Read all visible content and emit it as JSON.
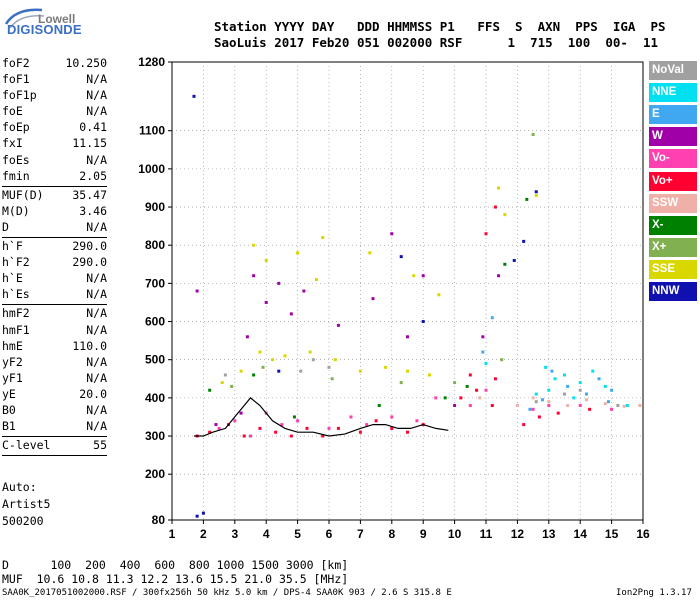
{
  "logo": {
    "line1": "Lowell",
    "line2": "DIGISONDE"
  },
  "header": {
    "labels": "Station YYYY DAY   DDD HHMMSS P1   FFS  S  AXN  PPS  IGA  PS",
    "values": "SaoLuis 2017 Feb20 051 002000 RSF      1  715  100  00-  11"
  },
  "params": [
    {
      "name": "foF2",
      "value": "10.250"
    },
    {
      "name": "foF1",
      "value": "N/A"
    },
    {
      "name": "foF1p",
      "value": "N/A"
    },
    {
      "name": "foE",
      "value": "N/A"
    },
    {
      "name": "foEp",
      "value": "0.41"
    },
    {
      "name": "fxI",
      "value": "11.15"
    },
    {
      "name": "foEs",
      "value": "N/A"
    },
    {
      "name": "fmin",
      "value": "2.05"
    },
    {
      "sep": true
    },
    {
      "name": "MUF(D)",
      "value": "35.47"
    },
    {
      "name": "M(D)",
      "value": "3.46"
    },
    {
      "name": "D",
      "value": "N/A"
    },
    {
      "sep": true
    },
    {
      "name": "h`F",
      "value": "290.0"
    },
    {
      "name": "h`F2",
      "value": "290.0"
    },
    {
      "name": "h`E",
      "value": "N/A"
    },
    {
      "name": "h`Es",
      "value": "N/A"
    },
    {
      "sep": true
    },
    {
      "name": "hmF2",
      "value": "N/A"
    },
    {
      "name": "hmF1",
      "value": "N/A"
    },
    {
      "name": "hmE",
      "value": "110.0"
    },
    {
      "name": "yF2",
      "value": "N/A"
    },
    {
      "name": "yF1",
      "value": "N/A"
    },
    {
      "name": "yE",
      "value": "20.0"
    },
    {
      "name": "B0",
      "value": "N/A"
    },
    {
      "name": "B1",
      "value": "N/A"
    },
    {
      "sep": true
    },
    {
      "name": "C-level",
      "value": "55"
    },
    {
      "sep": true
    }
  ],
  "autoscaling": {
    "line1": "Auto:",
    "line2": "Artist5",
    "line3": "500200"
  },
  "muf_table": {
    "d_line": "D      100  200  400  600  800 1000 1500 3000 [km]",
    "muf_line": "MUF  10.6 10.8 11.3 12.2 13.6 15.5 21.0 35.5 [MHz]"
  },
  "footer": {
    "file_info": "SAA0K_2017051002000.RSF / 300fx256h 50 kHz 5.0 km / DPS-4 SAA0K 903 / 2.6 S 315.8 E",
    "version": "Ion2Png 1.3.17"
  },
  "legend": [
    {
      "label": "NoVal",
      "color": "#a0a0a0"
    },
    {
      "label": "NNE",
      "color": "#00e0f0"
    },
    {
      "label": "E",
      "color": "#40a8f0"
    },
    {
      "label": "W",
      "color": "#a000a8"
    },
    {
      "label": "Vo-",
      "color": "#ff40b0"
    },
    {
      "label": "Vo+",
      "color": "#ff0030"
    },
    {
      "label": "SSW",
      "color": "#f0b0a8"
    },
    {
      "label": "X-",
      "color": "#008000"
    },
    {
      "label": "X+",
      "color": "#80b050"
    },
    {
      "label": "SSE",
      "color": "#d8d800"
    },
    {
      "label": "NNW",
      "color": "#1010b0"
    }
  ],
  "chart_data": {
    "type": "scatter",
    "xlim": [
      1,
      16
    ],
    "ylim": [
      80,
      1280
    ],
    "x_ticks": [
      1,
      2,
      3,
      4,
      5,
      6,
      7,
      8,
      9,
      10,
      11,
      12,
      13,
      14,
      15,
      16
    ],
    "y_ticks": [
      80,
      200,
      300,
      400,
      500,
      600,
      700,
      800,
      900,
      1000,
      1100,
      1280
    ],
    "xlabel": "",
    "ylabel": "",
    "grid": true,
    "scaled_trace": [
      [
        1.7,
        300
      ],
      [
        2.0,
        300
      ],
      [
        2.3,
        310
      ],
      [
        2.7,
        320
      ],
      [
        3.0,
        350
      ],
      [
        3.3,
        380
      ],
      [
        3.5,
        400
      ],
      [
        3.8,
        380
      ],
      [
        4.2,
        340
      ],
      [
        4.6,
        320
      ],
      [
        5.0,
        310
      ],
      [
        5.5,
        310
      ],
      [
        6.0,
        300
      ],
      [
        6.5,
        305
      ],
      [
        7.0,
        320
      ],
      [
        7.4,
        330
      ],
      [
        7.8,
        330
      ],
      [
        8.2,
        320
      ],
      [
        8.6,
        320
      ],
      [
        9.0,
        330
      ],
      [
        9.4,
        320
      ],
      [
        9.8,
        315
      ]
    ],
    "series": [
      {
        "name": "NoVal",
        "color": "#a0a0a0",
        "points": [
          [
            5.1,
            470
          ],
          [
            5.5,
            500
          ],
          [
            2.7,
            460
          ],
          [
            6.0,
            480
          ],
          [
            14.0,
            420
          ],
          [
            15.2,
            380
          ],
          [
            13.5,
            410
          ],
          [
            12.6,
            390
          ]
        ]
      },
      {
        "name": "NNE",
        "color": "#00e0f0",
        "points": [
          [
            12.6,
            410
          ],
          [
            13.0,
            420
          ],
          [
            13.5,
            460
          ],
          [
            14.0,
            440
          ],
          [
            14.4,
            470
          ],
          [
            13.8,
            400
          ],
          [
            12.9,
            480
          ],
          [
            11.0,
            490
          ],
          [
            14.8,
            430
          ],
          [
            15.5,
            380
          ],
          [
            13.2,
            450
          ]
        ]
      },
      {
        "name": "E",
        "color": "#40a8f0",
        "points": [
          [
            12.8,
            395
          ],
          [
            13.6,
            430
          ],
          [
            14.2,
            410
          ],
          [
            14.6,
            450
          ],
          [
            15.0,
            420
          ],
          [
            12.4,
            370
          ],
          [
            13.1,
            470
          ],
          [
            14.9,
            390
          ],
          [
            10.9,
            520
          ],
          [
            11.2,
            610
          ]
        ]
      },
      {
        "name": "W",
        "color": "#a000a8",
        "points": [
          [
            3.6,
            720
          ],
          [
            4.0,
            650
          ],
          [
            4.4,
            700
          ],
          [
            4.8,
            620
          ],
          [
            5.2,
            680
          ],
          [
            8.5,
            560
          ],
          [
            9.0,
            720
          ],
          [
            8.0,
            830
          ],
          [
            7.4,
            660
          ],
          [
            3.4,
            560
          ],
          [
            6.3,
            590
          ],
          [
            1.8,
            680
          ],
          [
            10.9,
            560
          ],
          [
            11.4,
            720
          ],
          [
            10.0,
            380
          ],
          [
            2.4,
            330
          ],
          [
            3.2,
            360
          ]
        ]
      },
      {
        "name": "Vo-",
        "color": "#ff40b0",
        "points": [
          [
            2.5,
            320
          ],
          [
            3.0,
            340
          ],
          [
            3.5,
            300
          ],
          [
            4.0,
            360
          ],
          [
            4.5,
            330
          ],
          [
            5.0,
            340
          ],
          [
            6.0,
            320
          ],
          [
            6.7,
            350
          ],
          [
            7.2,
            330
          ],
          [
            8.0,
            350
          ],
          [
            8.8,
            340
          ],
          [
            10.5,
            380
          ],
          [
            11.0,
            420
          ],
          [
            12.5,
            370
          ],
          [
            13.0,
            380
          ],
          [
            14.0,
            380
          ],
          [
            15.0,
            370
          ],
          [
            9.4,
            400
          ]
        ]
      },
      {
        "name": "Vo+",
        "color": "#ff0030",
        "points": [
          [
            1.8,
            300
          ],
          [
            2.2,
            310
          ],
          [
            2.8,
            330
          ],
          [
            3.3,
            300
          ],
          [
            3.8,
            320
          ],
          [
            4.3,
            310
          ],
          [
            4.8,
            300
          ],
          [
            5.3,
            320
          ],
          [
            5.8,
            300
          ],
          [
            6.3,
            320
          ],
          [
            7.0,
            310
          ],
          [
            7.5,
            340
          ],
          [
            8.0,
            320
          ],
          [
            8.5,
            310
          ],
          [
            9.0,
            330
          ],
          [
            10.2,
            400
          ],
          [
            10.7,
            420
          ],
          [
            11.2,
            380
          ],
          [
            10.5,
            460
          ],
          [
            11.3,
            450
          ],
          [
            12.2,
            330
          ],
          [
            12.7,
            350
          ],
          [
            13.3,
            360
          ],
          [
            14.3,
            370
          ],
          [
            11.3,
            900
          ],
          [
            11.0,
            830
          ]
        ]
      },
      {
        "name": "SSW",
        "color": "#f0b0a8",
        "points": [
          [
            12.5,
            400
          ],
          [
            13.0,
            390
          ],
          [
            13.6,
            380
          ],
          [
            14.2,
            395
          ],
          [
            14.8,
            385
          ],
          [
            15.4,
            378
          ],
          [
            15.9,
            380
          ],
          [
            12.0,
            380
          ],
          [
            10.8,
            400
          ]
        ]
      },
      {
        "name": "X-",
        "color": "#008000",
        "points": [
          [
            2.2,
            420
          ],
          [
            3.6,
            460
          ],
          [
            12.3,
            920
          ],
          [
            11.6,
            750
          ],
          [
            10.4,
            430
          ],
          [
            9.7,
            400
          ],
          [
            4.9,
            350
          ],
          [
            7.6,
            380
          ]
        ]
      },
      {
        "name": "X+",
        "color": "#80b050",
        "points": [
          [
            2.9,
            430
          ],
          [
            3.9,
            480
          ],
          [
            6.1,
            450
          ],
          [
            8.3,
            440
          ],
          [
            10.0,
            440
          ],
          [
            11.5,
            500
          ],
          [
            12.5,
            1090
          ]
        ]
      },
      {
        "name": "SSE",
        "color": "#d8d800",
        "points": [
          [
            2.6,
            440
          ],
          [
            3.2,
            470
          ],
          [
            3.8,
            520
          ],
          [
            4.2,
            500
          ],
          [
            4.6,
            510
          ],
          [
            5.4,
            520
          ],
          [
            6.2,
            500
          ],
          [
            7.0,
            470
          ],
          [
            7.8,
            480
          ],
          [
            8.5,
            470
          ],
          [
            9.2,
            460
          ],
          [
            5.6,
            710
          ],
          [
            5.0,
            780
          ],
          [
            4.0,
            760
          ],
          [
            3.6,
            800
          ],
          [
            5.8,
            820
          ],
          [
            7.3,
            780
          ],
          [
            8.7,
            720
          ],
          [
            9.5,
            670
          ],
          [
            11.6,
            880
          ],
          [
            12.6,
            930
          ],
          [
            11.4,
            950
          ]
        ]
      },
      {
        "name": "NNW",
        "color": "#1010b0",
        "points": [
          [
            1.7,
            1190
          ],
          [
            11.9,
            760
          ],
          [
            12.2,
            810
          ],
          [
            12.6,
            940
          ],
          [
            9.0,
            600
          ],
          [
            8.3,
            770
          ],
          [
            4.4,
            470
          ],
          [
            2.0,
            98
          ],
          [
            1.8,
            90
          ]
        ]
      }
    ]
  }
}
